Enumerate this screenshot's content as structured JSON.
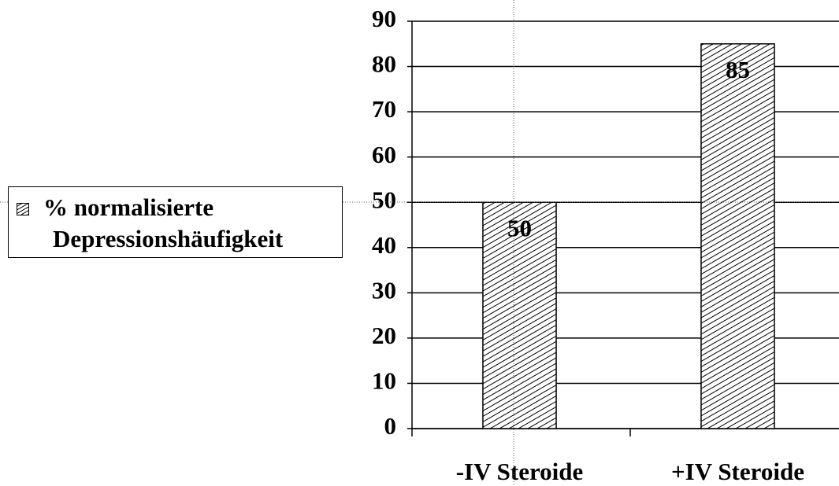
{
  "chart_data": {
    "type": "bar",
    "categories": [
      "-IV Steroide",
      "+IV Steroide"
    ],
    "series": [
      {
        "name": "% normalisierte Depressionshäufigkeit",
        "color": "#000000",
        "values": [
          50,
          85
        ]
      }
    ],
    "ylim": [
      0,
      90
    ],
    "yticks": [
      0,
      10,
      20,
      30,
      40,
      50,
      60,
      70,
      80,
      90
    ],
    "grid": true,
    "legend": "left"
  }
}
